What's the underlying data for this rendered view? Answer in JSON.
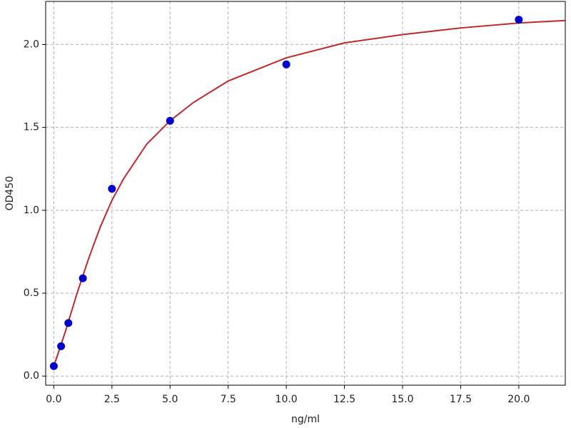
{
  "chart_data": {
    "type": "scatter",
    "x_label": "ng/ml",
    "y_label": "OD450",
    "series": [
      {
        "type": "scatter",
        "color": "#0000cc",
        "x": [
          0,
          0.3125,
          0.625,
          1.25,
          2.5,
          5,
          10,
          20
        ],
        "values": [
          0.06,
          0.18,
          0.32,
          0.59,
          1.13,
          1.54,
          1.88,
          2.15
        ]
      },
      {
        "type": "line",
        "color": "#c0282a",
        "x": [
          0,
          0.5,
          1,
          1.5,
          2,
          2.5,
          3,
          4,
          5,
          6,
          7.5,
          10,
          12.5,
          15,
          17.5,
          20,
          22
        ],
        "values": [
          0.06,
          0.27,
          0.5,
          0.71,
          0.9,
          1.06,
          1.19,
          1.4,
          1.54,
          1.65,
          1.78,
          1.92,
          2.01,
          2.06,
          2.1,
          2.13,
          2.145
        ]
      }
    ],
    "xlim": [
      -0.35,
      22
    ],
    "ylim": [
      -0.055,
      2.26
    ],
    "xticks": [
      {
        "value": 0,
        "label": "0.0"
      },
      {
        "value": 2.5,
        "label": "2.5"
      },
      {
        "value": 5,
        "label": "5.0"
      },
      {
        "value": 7.5,
        "label": "7.5"
      },
      {
        "value": 10,
        "label": "10.0"
      },
      {
        "value": 12.5,
        "label": "12.5"
      },
      {
        "value": 15,
        "label": "15.0"
      },
      {
        "value": 17.5,
        "label": "17.5"
      },
      {
        "value": 20,
        "label": "20.0"
      }
    ],
    "yticks": [
      {
        "value": 0,
        "label": "0.0"
      },
      {
        "value": 0.5,
        "label": "0.5"
      },
      {
        "value": 1,
        "label": "1.0"
      },
      {
        "value": 1.5,
        "label": "1.5"
      },
      {
        "value": 2,
        "label": "2.0"
      }
    ],
    "grid": true
  }
}
